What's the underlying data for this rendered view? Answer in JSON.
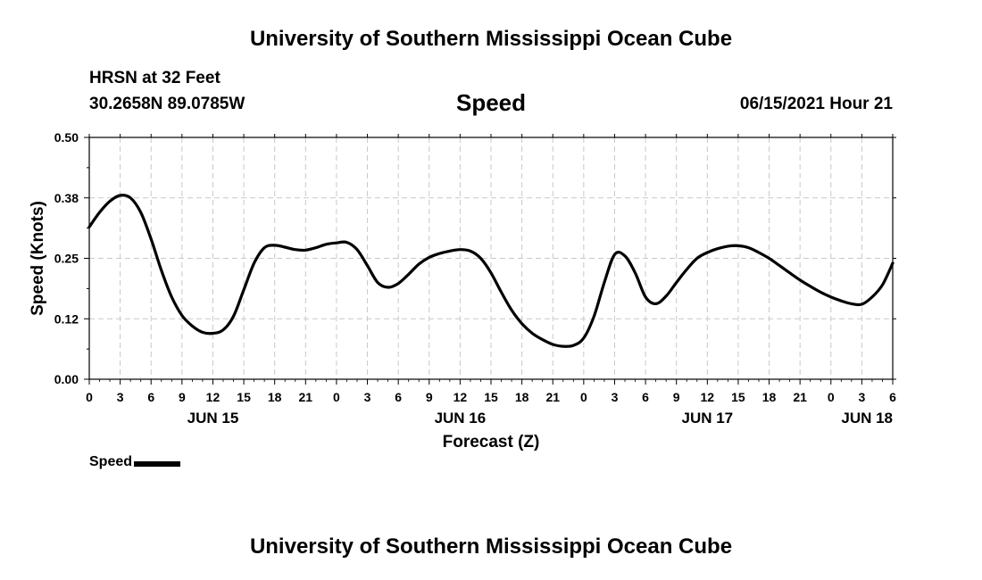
{
  "page": {
    "title_top": "University of Southern Mississippi Ocean Cube",
    "title_bottom": "University of Southern Mississippi Ocean Cube",
    "station": "HRSN at 32 Feet",
    "coordinates": "30.2658N  89.0785W",
    "plot_title": "Speed",
    "datetime": "06/15/2021 Hour 21"
  },
  "legend": {
    "label": "Speed",
    "color": "#000000"
  },
  "chart_data": {
    "type": "line",
    "title": "Speed",
    "xlabel": "Forecast (Z)",
    "ylabel": "Speed (Knots)",
    "xlim": [
      0,
      78
    ],
    "ylim": [
      0,
      0.5
    ],
    "yticks": [
      {
        "value": 0.0,
        "label": "0.00"
      },
      {
        "value": 0.125,
        "label": "0.12"
      },
      {
        "value": 0.25,
        "label": "0.25"
      },
      {
        "value": 0.375,
        "label": "0.38"
      },
      {
        "value": 0.5,
        "label": "0.50"
      }
    ],
    "xticks": [
      {
        "value": 0,
        "label": "0"
      },
      {
        "value": 3,
        "label": "3"
      },
      {
        "value": 6,
        "label": "6"
      },
      {
        "value": 9,
        "label": "9"
      },
      {
        "value": 12,
        "label": "12"
      },
      {
        "value": 15,
        "label": "15"
      },
      {
        "value": 18,
        "label": "18"
      },
      {
        "value": 21,
        "label": "21"
      },
      {
        "value": 24,
        "label": "0"
      },
      {
        "value": 27,
        "label": "3"
      },
      {
        "value": 30,
        "label": "6"
      },
      {
        "value": 33,
        "label": "9"
      },
      {
        "value": 36,
        "label": "12"
      },
      {
        "value": 39,
        "label": "15"
      },
      {
        "value": 42,
        "label": "18"
      },
      {
        "value": 45,
        "label": "21"
      },
      {
        "value": 48,
        "label": "0"
      },
      {
        "value": 51,
        "label": "3"
      },
      {
        "value": 54,
        "label": "6"
      },
      {
        "value": 57,
        "label": "9"
      },
      {
        "value": 60,
        "label": "12"
      },
      {
        "value": 63,
        "label": "15"
      },
      {
        "value": 66,
        "label": "18"
      },
      {
        "value": 69,
        "label": "21"
      },
      {
        "value": 72,
        "label": "0"
      },
      {
        "value": 75,
        "label": "3"
      },
      {
        "value": 78,
        "label": "6"
      }
    ],
    "date_labels": [
      {
        "value": 12,
        "label": "JUN 15"
      },
      {
        "value": 36,
        "label": "JUN 16"
      },
      {
        "value": 60,
        "label": "JUN 17"
      },
      {
        "value": 78,
        "label": "JUN 18"
      }
    ],
    "grid": true,
    "series": [
      {
        "name": "Speed",
        "color": "#000000",
        "x": [
          0,
          1,
          2,
          3,
          4,
          5,
          6,
          7,
          8,
          9,
          10,
          11,
          12,
          13,
          14,
          15,
          16,
          17,
          18,
          19,
          20,
          21,
          22,
          23,
          24,
          25,
          26,
          27,
          28,
          29,
          30,
          31,
          32,
          33,
          34,
          35,
          36,
          37,
          38,
          39,
          40,
          41,
          42,
          43,
          44,
          45,
          46,
          47,
          48,
          49,
          50,
          51,
          52,
          53,
          54,
          55,
          56,
          57,
          58,
          59,
          60,
          61,
          62,
          63,
          64,
          65,
          66,
          67,
          68,
          69,
          70,
          71,
          72,
          73,
          74,
          75,
          76,
          77,
          78
        ],
        "values": [
          0.315,
          0.345,
          0.368,
          0.38,
          0.375,
          0.345,
          0.29,
          0.225,
          0.17,
          0.132,
          0.11,
          0.097,
          0.095,
          0.102,
          0.13,
          0.185,
          0.24,
          0.272,
          0.277,
          0.273,
          0.268,
          0.267,
          0.272,
          0.279,
          0.282,
          0.283,
          0.268,
          0.235,
          0.2,
          0.19,
          0.198,
          0.217,
          0.238,
          0.252,
          0.26,
          0.265,
          0.268,
          0.265,
          0.25,
          0.22,
          0.18,
          0.143,
          0.115,
          0.095,
          0.082,
          0.072,
          0.068,
          0.07,
          0.085,
          0.13,
          0.2,
          0.258,
          0.255,
          0.22,
          0.17,
          0.156,
          0.172,
          0.2,
          0.227,
          0.25,
          0.262,
          0.27,
          0.275,
          0.276,
          0.272,
          0.262,
          0.25,
          0.235,
          0.22,
          0.205,
          0.192,
          0.18,
          0.17,
          0.162,
          0.156,
          0.155,
          0.17,
          0.195,
          0.24
        ]
      }
    ]
  }
}
